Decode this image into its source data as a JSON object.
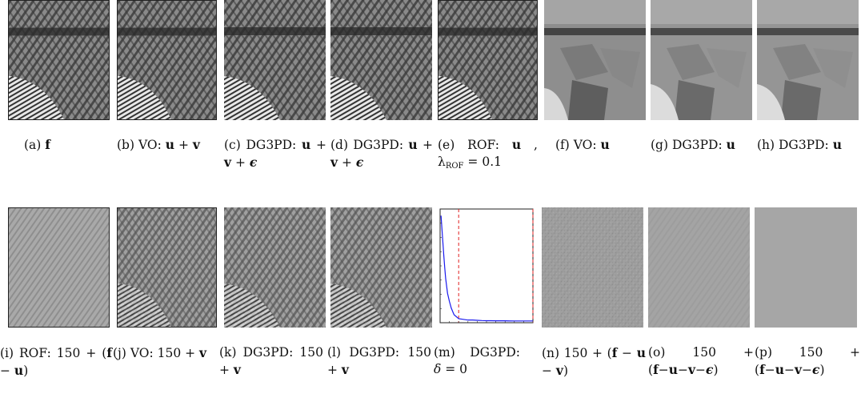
{
  "figure": {
    "row1": [
      {
        "id": "a",
        "label": "(a)",
        "content": "f"
      },
      {
        "id": "b",
        "label": "(b)",
        "content": "VO: u + v"
      },
      {
        "id": "c",
        "label": "(c)",
        "content": "DG3PD: u + v + ε"
      },
      {
        "id": "d",
        "label": "(d)",
        "content": "DG3PD: u + v + ε"
      },
      {
        "id": "e",
        "label": "(e)",
        "content": "ROF: u , λROF = 0.1"
      },
      {
        "id": "f",
        "label": "(f)",
        "content": "VO: u"
      },
      {
        "id": "g",
        "label": "(g)",
        "content": "DG3PD: u"
      },
      {
        "id": "h",
        "label": "(h)",
        "content": "DG3PD: u"
      }
    ],
    "row2": [
      {
        "id": "i",
        "label": "(i)",
        "content": "ROF: 150 + (f − u)"
      },
      {
        "id": "j",
        "label": "(j)",
        "content": "VO: 150 + v"
      },
      {
        "id": "k",
        "label": "(k)",
        "content": "DG3PD: 150 + v"
      },
      {
        "id": "l",
        "label": "(l)",
        "content": "DG3PD: 150 + v"
      },
      {
        "id": "m",
        "label": "(m)",
        "content": "DG3PD: δ = 0"
      },
      {
        "id": "n",
        "label": "(n)",
        "content": "150 + (f − u − v)"
      },
      {
        "id": "o",
        "label": "(o)",
        "content": "150 + (f−u−v−ε)"
      },
      {
        "id": "p",
        "label": "(p)",
        "content": "150 + (f−u−v−ε)"
      }
    ]
  },
  "caption_parts": {
    "a": {
      "pre": "(a) ",
      "bold": "f"
    },
    "b": {
      "pre": "(b) VO: ",
      "bold": "u",
      "mid": " + ",
      "bold2": "v"
    },
    "c": {
      "pre": "(c) DG3PD: ",
      "bold": "u",
      "mid": " + ",
      "bold2": "v",
      "mid2": " + ",
      "ital": "ϵ"
    },
    "d": {
      "pre": "(d) DG3PD: ",
      "bold": "u",
      "mid": " + ",
      "bold2": "v",
      "mid2": " + ",
      "ital": "ϵ"
    },
    "e": {
      "pre": "(e) ROF: ",
      "bold": "u",
      "mid": " , λ",
      "sub": "ROF",
      "post": " = 0.1"
    },
    "f": {
      "pre": "(f) VO: ",
      "bold": "u"
    },
    "g": {
      "pre": "(g) DG3PD: ",
      "bold": "u"
    },
    "h": {
      "pre": "(h) DG3PD: ",
      "bold": "u"
    },
    "i": {
      "pre": "(i) ROF: 150 + (",
      "bold": "f",
      "mid": " − ",
      "bold2": "u",
      "post": ")"
    },
    "j": {
      "pre": "(j) VO: 150 + ",
      "bold": "v"
    },
    "k": {
      "pre": "(k) DG3PD: 150 + ",
      "bold": "v"
    },
    "l": {
      "pre": "(l) DG3PD: 150 + ",
      "bold": "v"
    },
    "m": {
      "pre": "(m) DG3PD: ",
      "ital": "δ",
      "post": " = 0"
    },
    "n": {
      "pre": "(n) 150 + (",
      "bold": "f",
      "mid": " − ",
      "bold2": "u",
      "mid2": " − ",
      "bold3": "v",
      "post": ")"
    },
    "o": {
      "pre": "(o) 150 + (",
      "bold": "f",
      "mid": "−",
      "bold2": "u",
      "mid2": "−",
      "bold3": "v",
      "mid3": "−",
      "ital": "ϵ",
      "post": ")"
    },
    "p": {
      "pre": "(p) 150 + (",
      "bold": "f",
      "mid": "−",
      "bold2": "u",
      "mid2": "−",
      "bold3": "v",
      "mid3": "−",
      "ital": "ϵ",
      "post": ")"
    }
  },
  "chart_data": {
    "type": "line",
    "title": "",
    "xlabel": "",
    "ylabel": "",
    "x": [
      1,
      2,
      3,
      4,
      5,
      6,
      8,
      10,
      12,
      15,
      20,
      25,
      30,
      35,
      40,
      45,
      50,
      55,
      60,
      70,
      80,
      90,
      100
    ],
    "series": [
      {
        "values": [
          1.05,
          0.95,
          0.85,
          0.75,
          0.66,
          0.58,
          0.47,
          0.41,
          0.36,
          0.31,
          0.28,
          0.275,
          0.27,
          0.27,
          0.268,
          0.266,
          0.265,
          0.265,
          0.264,
          0.264,
          0.263,
          0.263,
          0.263
        ],
        "color": "#1a1aee"
      }
    ],
    "vlines": [
      {
        "x": 20,
        "color": "#e02020",
        "style": "dashed"
      },
      {
        "x": 100,
        "color": "#e02020",
        "style": "dashed"
      }
    ],
    "xlim": [
      0,
      100
    ],
    "ylim": [
      0.25,
      1.1
    ],
    "grid": false
  }
}
